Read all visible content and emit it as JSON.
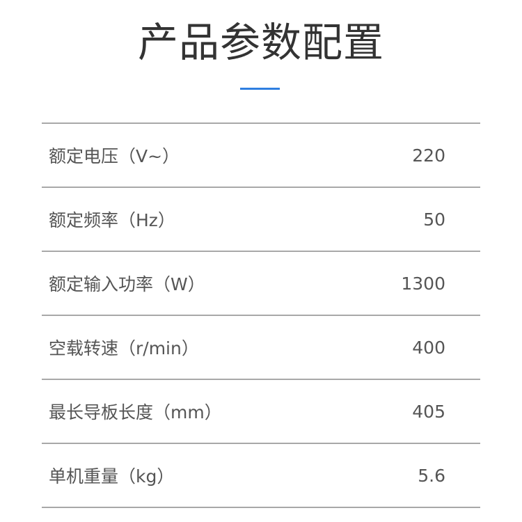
{
  "title": "产品参数配置",
  "accent_color": "#2f7fe0",
  "specs": [
    {
      "label": "额定电压（V~）",
      "value": "220"
    },
    {
      "label": "额定频率（Hz）",
      "value": "50"
    },
    {
      "label": "额定输入功率（W）",
      "value": "1300"
    },
    {
      "label": "空载转速（r/min）",
      "value": "400"
    },
    {
      "label": "最长导板长度（mm）",
      "value": "405"
    },
    {
      "label": "单机重量（kg）",
      "value": "5.6"
    }
  ]
}
